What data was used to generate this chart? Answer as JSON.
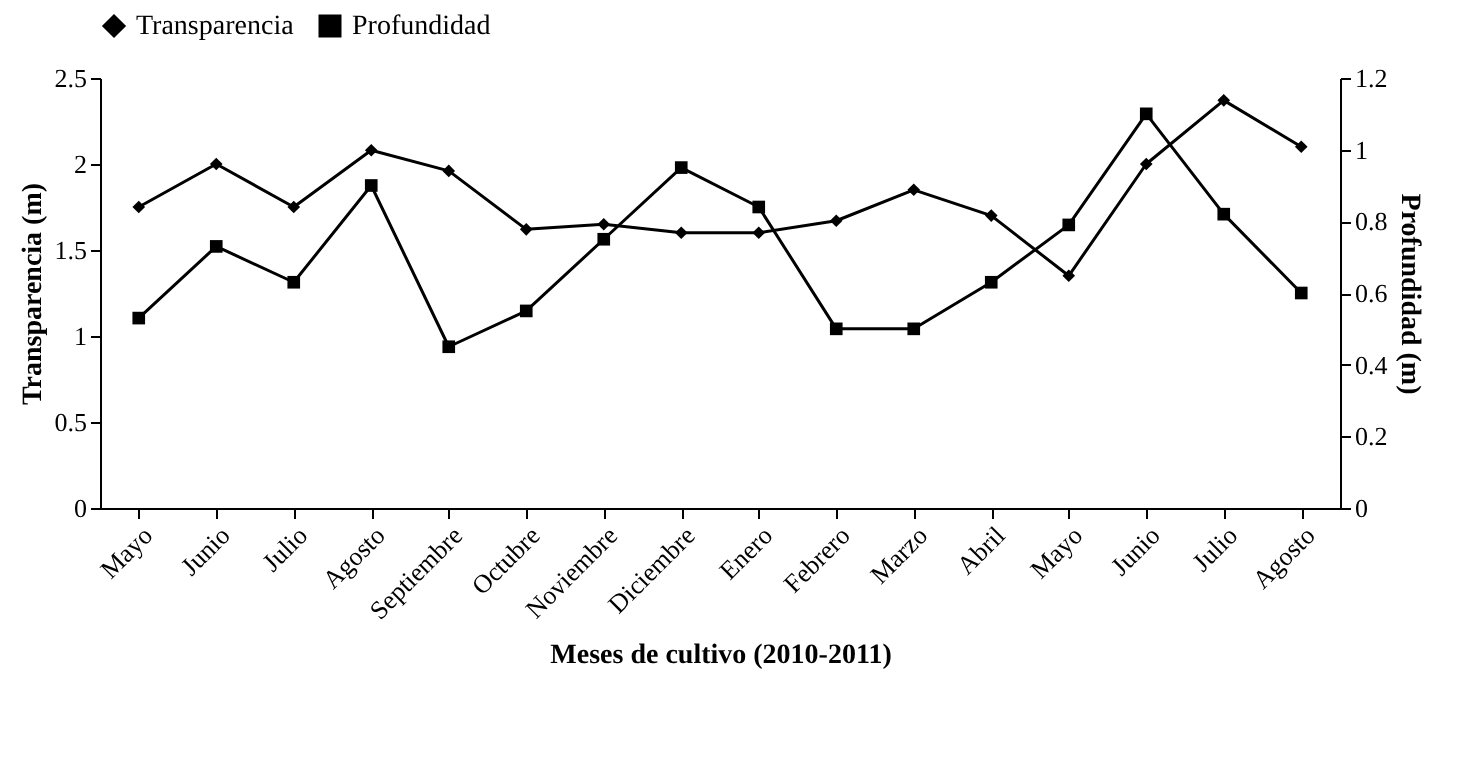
{
  "chart_data": {
    "type": "line",
    "xlabel": "Meses de cultivo (2010-2011)",
    "ylabel": "Transparencia (m)",
    "y2label": "Profundidad (m)",
    "categories": [
      "Mayo",
      "Junio",
      "Julio",
      "Agosto",
      "Septiembre",
      "Octubre",
      "Noviembre",
      "Diciembre",
      "Enero",
      "Febrero",
      "Marzo",
      "Abril",
      "Mayo",
      "Junio",
      "Julio",
      "Agosto"
    ],
    "series": [
      {
        "name": "Transparencia",
        "color": "#000000",
        "marker": "diamond",
        "values": [
          1.75,
          2.0,
          1.75,
          2.08,
          1.96,
          1.62,
          1.65,
          1.6,
          1.6,
          1.67,
          1.85,
          1.7,
          1.35,
          2.0,
          2.37,
          2.1
        ]
      },
      {
        "name": "Profundidad",
        "color": "#000000",
        "marker": "square",
        "axis": "y2",
        "values": [
          0.53,
          0.73,
          0.63,
          0.9,
          0.45,
          0.55,
          0.75,
          0.95,
          0.84,
          0.5,
          0.5,
          0.63,
          0.79,
          1.1,
          0.82,
          0.6
        ]
      }
    ],
    "ylim": [
      0,
      2.5
    ],
    "yticks": [
      0,
      0.5,
      1,
      1.5,
      2,
      2.5
    ],
    "y2lim": [
      0,
      1.2
    ],
    "y2ticks": [
      0,
      0.2,
      0.4,
      0.6,
      0.8,
      1,
      1.2
    ],
    "legend": "top",
    "grid": false,
    "line_style": "solid"
  }
}
